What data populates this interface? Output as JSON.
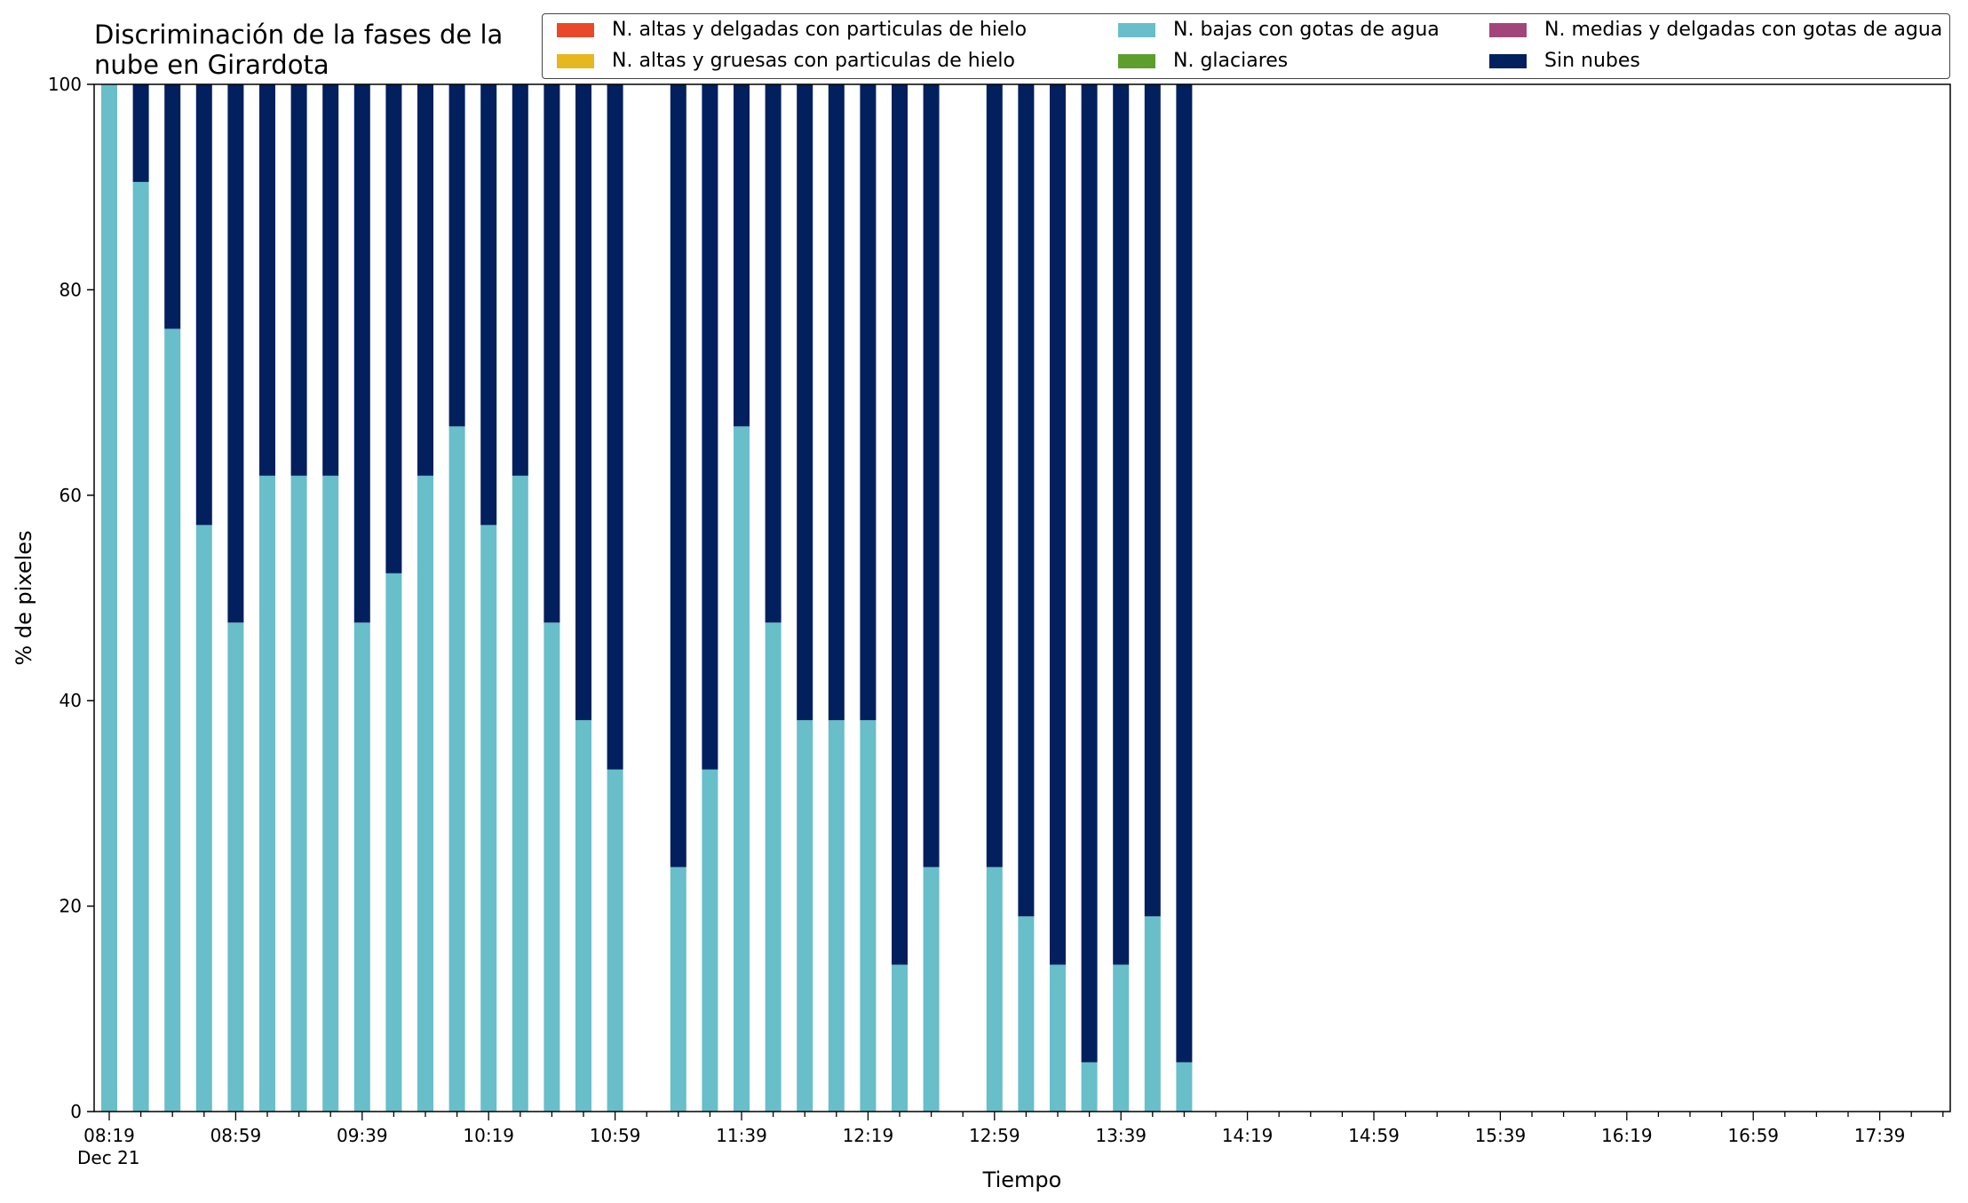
{
  "chart_data": {
    "type": "bar",
    "stacked": true,
    "title": "Discriminación de la fases de la\nnube en Girardota",
    "xlabel": "Tiempo",
    "ylabel": "% de pixeles",
    "ylim": [
      0,
      100
    ],
    "yticks": [
      0,
      20,
      40,
      60,
      80,
      100
    ],
    "xticks": [
      "08:19\nDec 21",
      "08:59",
      "09:39",
      "10:19",
      "10:59",
      "11:39",
      "12:19",
      "12:59",
      "13:39",
      "14:19",
      "14:59",
      "15:39",
      "16:19",
      "16:59",
      "17:39"
    ],
    "legend_placement": "top",
    "grid": false,
    "categories": [
      "08:19",
      "08:29",
      "08:39",
      "08:49",
      "08:59",
      "09:09",
      "09:19",
      "09:29",
      "09:39",
      "09:49",
      "09:59",
      "10:09",
      "10:19",
      "10:29",
      "10:39",
      "10:49",
      "10:59",
      "11:09",
      "11:19",
      "11:29",
      "11:39",
      "11:49",
      "11:59",
      "12:09",
      "12:19",
      "12:29",
      "12:39",
      "12:49",
      "12:59",
      "13:09",
      "13:19",
      "13:29",
      "13:39",
      "13:49",
      "13:59",
      "14:09",
      "14:19",
      "14:29",
      "14:39",
      "14:49",
      "14:59",
      "15:09",
      "15:19",
      "15:29",
      "15:39",
      "15:49",
      "15:59",
      "16:09",
      "16:19",
      "16:29",
      "16:39",
      "16:49",
      "16:59",
      "17:09",
      "17:19",
      "17:29",
      "17:39",
      "17:49",
      "17:59"
    ],
    "series": [
      {
        "name": "N. altas y delgadas con particulas de hielo",
        "color": "#e8492b",
        "values": [
          0,
          0,
          0,
          0,
          0,
          0,
          0,
          0,
          0,
          0,
          0,
          0,
          0,
          0,
          0,
          0,
          0,
          0,
          0,
          0,
          0,
          0,
          0,
          0,
          0,
          0,
          0,
          0,
          0,
          0,
          0,
          0,
          0,
          0,
          0,
          0,
          0,
          0,
          0,
          0,
          0,
          0,
          0,
          0,
          0,
          0,
          0,
          0,
          0,
          0,
          0,
          0,
          0,
          0,
          0,
          0,
          0,
          0,
          0
        ]
      },
      {
        "name": "N. altas y gruesas con particulas de hielo",
        "color": "#e6b71e",
        "values": [
          0,
          0,
          0,
          0,
          0,
          0,
          0,
          0,
          0,
          0,
          0,
          0,
          0,
          0,
          0,
          0,
          0,
          0,
          0,
          0,
          0,
          0,
          0,
          0,
          0,
          0,
          0,
          0,
          0,
          0,
          0,
          0,
          0,
          0,
          0,
          0,
          0,
          0,
          0,
          0,
          0,
          0,
          0,
          0,
          0,
          0,
          0,
          0,
          0,
          0,
          0,
          0,
          0,
          0,
          0,
          0,
          0,
          0,
          0
        ]
      },
      {
        "name": "N. bajas con gotas de agua",
        "color": "#68bec9",
        "values": [
          100,
          90.5,
          76.2,
          57.1,
          47.6,
          61.9,
          61.9,
          61.9,
          47.6,
          52.4,
          61.9,
          66.7,
          57.1,
          61.9,
          47.6,
          38.1,
          33.3,
          null,
          23.8,
          33.3,
          66.7,
          47.6,
          38.1,
          38.1,
          38.1,
          14.3,
          23.8,
          null,
          23.8,
          19.0,
          14.3,
          4.8,
          14.3,
          19.0,
          4.8,
          null,
          null,
          null,
          null,
          null,
          null,
          null,
          null,
          null,
          null,
          null,
          null,
          null,
          null,
          null,
          null,
          null,
          null,
          null,
          null,
          null,
          null,
          null,
          null
        ]
      },
      {
        "name": "N. glaciares",
        "color": "#5e9e2d",
        "values": [
          0,
          0,
          0,
          0,
          0,
          0,
          0,
          0,
          0,
          0,
          0,
          0,
          0,
          0,
          0,
          0,
          0,
          0,
          0,
          0,
          0,
          0,
          0,
          0,
          0,
          0,
          0,
          0,
          0,
          0,
          0,
          0,
          0,
          0,
          0,
          0,
          0,
          0,
          0,
          0,
          0,
          0,
          0,
          0,
          0,
          0,
          0,
          0,
          0,
          0,
          0,
          0,
          0,
          0,
          0,
          0,
          0,
          0,
          0
        ]
      },
      {
        "name": "N. medias y delgadas con gotas de agua",
        "color": "#a2457a",
        "values": [
          0,
          0,
          0,
          0,
          0,
          0,
          0,
          0,
          0,
          0,
          0,
          0,
          0,
          0,
          0,
          0,
          0,
          0,
          0,
          0,
          0,
          0,
          0,
          0,
          0,
          0,
          0,
          0,
          0,
          0,
          0,
          0,
          0,
          0,
          0,
          0,
          0,
          0,
          0,
          0,
          0,
          0,
          0,
          0,
          0,
          0,
          0,
          0,
          0,
          0,
          0,
          0,
          0,
          0,
          0,
          0,
          0,
          0,
          0
        ]
      },
      {
        "name": "Sin nubes",
        "color": "#021f5e",
        "values": [
          0,
          9.5,
          23.8,
          42.9,
          52.4,
          38.1,
          38.1,
          38.1,
          52.4,
          47.6,
          38.1,
          33.3,
          42.9,
          38.1,
          52.4,
          61.9,
          66.7,
          null,
          76.2,
          66.7,
          33.3,
          52.4,
          61.9,
          61.9,
          61.9,
          85.7,
          76.2,
          null,
          76.2,
          81.0,
          85.7,
          95.2,
          85.7,
          81.0,
          95.2,
          null,
          null,
          null,
          null,
          null,
          null,
          null,
          null,
          null,
          null,
          null,
          null,
          null,
          null,
          null,
          null,
          null,
          null,
          null,
          null,
          null,
          null,
          null,
          null
        ]
      }
    ]
  }
}
